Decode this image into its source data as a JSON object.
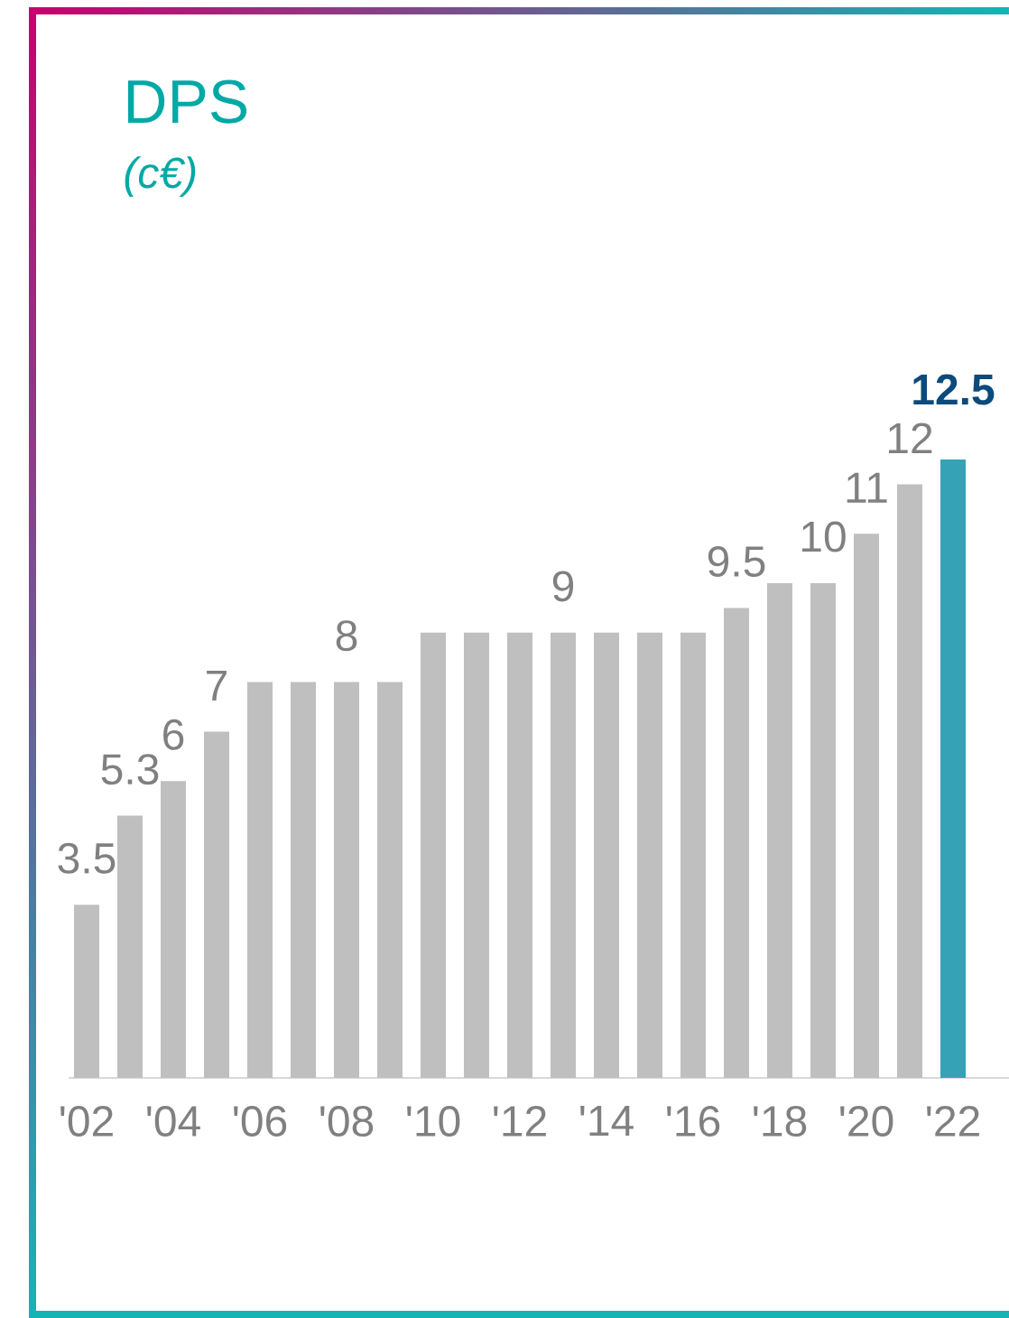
{
  "chart_data": {
    "type": "bar",
    "title": "DPS",
    "subtitle": "(c€)",
    "categories": [
      "'02",
      null,
      "'04",
      null,
      "'06",
      null,
      "'08",
      null,
      "'10",
      null,
      "'12",
      null,
      "'14",
      null,
      "'16",
      null,
      "'18",
      null,
      "'20",
      null,
      "'22"
    ],
    "values": [
      3.5,
      5.3,
      6,
      7,
      8,
      8,
      8,
      8,
      9,
      9,
      9,
      9,
      9,
      9,
      9,
      9.5,
      10,
      10,
      11,
      12,
      12.5
    ],
    "colors": [
      "#bfbfbf",
      "#bfbfbf",
      "#bfbfbf",
      "#bfbfbf",
      "#bfbfbf",
      "#bfbfbf",
      "#bfbfbf",
      "#bfbfbf",
      "#bfbfbf",
      "#bfbfbf",
      "#bfbfbf",
      "#bfbfbf",
      "#bfbfbf",
      "#bfbfbf",
      "#bfbfbf",
      "#bfbfbf",
      "#bfbfbf",
      "#bfbfbf",
      "#bfbfbf",
      "#bfbfbf",
      "#35a3b5"
    ],
    "value_labels": [
      "3.5",
      "5.3",
      "6",
      "7",
      null,
      null,
      "8",
      null,
      null,
      null,
      null,
      "9",
      null,
      null,
      null,
      "9.5",
      null,
      "10",
      "11",
      "12",
      "12.5"
    ]
  }
}
